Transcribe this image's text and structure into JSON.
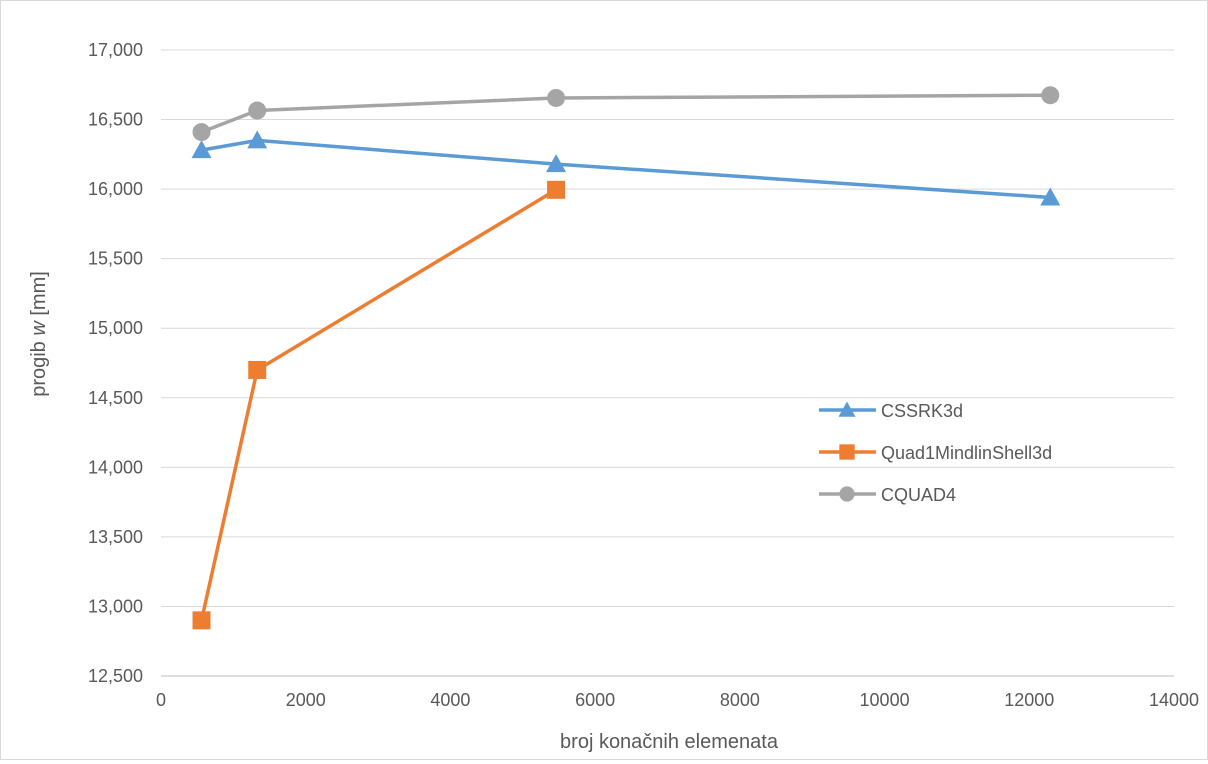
{
  "chart_data": {
    "type": "line",
    "title": "",
    "xlabel": "broj konačnih elemenata",
    "ylabel_prefix": "progib ",
    "ylabel_var": "w",
    "ylabel_suffix": " [mm]",
    "xlim": [
      0,
      14000
    ],
    "ylim": [
      12500,
      17000
    ],
    "x_ticks": [
      0,
      2000,
      4000,
      6000,
      8000,
      10000,
      12000,
      14000
    ],
    "x_tick_labels": [
      "0",
      "2000",
      "4000",
      "6000",
      "8000",
      "10000",
      "12000",
      "14000"
    ],
    "y_ticks": [
      12500,
      13000,
      13500,
      14000,
      14500,
      15000,
      15500,
      16000,
      16500,
      17000
    ],
    "y_tick_labels": [
      "12,500",
      "13,000",
      "13,500",
      "14,000",
      "14,500",
      "15,000",
      "15,500",
      "16,000",
      "16,500",
      "17,000"
    ],
    "grid": "horizontal",
    "legend_position": "right",
    "series": [
      {
        "name": "CSSRK3d",
        "color": "#5b9bd5",
        "marker": "triangle",
        "x": [
          560,
          1330,
          5460,
          12290
        ],
        "y": [
          16280,
          16350,
          16180,
          15940
        ]
      },
      {
        "name": "Quad1MindlinShell3d",
        "color": "#ed7d31",
        "marker": "square",
        "x": [
          560,
          1330,
          5460
        ],
        "y": [
          12900,
          14700,
          15995
        ]
      },
      {
        "name": "CQUAD4",
        "color": "#a5a5a5",
        "marker": "circle",
        "x": [
          560,
          1330,
          5460,
          12290
        ],
        "y": [
          16410,
          16565,
          16655,
          16675
        ]
      }
    ]
  }
}
